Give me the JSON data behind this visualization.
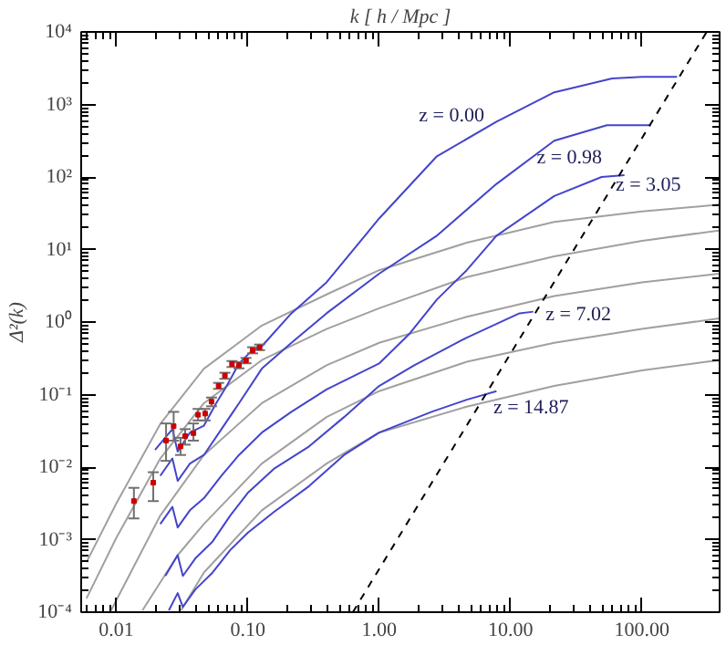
{
  "chart_data": {
    "type": "line",
    "xlabel": "k [ h / Mpc ]",
    "ylabel": "Δ²(k)",
    "log": "xy",
    "grid": false,
    "xlim": [
      0.0054,
      390
    ],
    "ylim": [
      0.0001,
      10000
    ],
    "xticks": [
      {
        "value": 0.01,
        "label": "0.01"
      },
      {
        "value": 0.1,
        "label": "0.10"
      },
      {
        "value": 1,
        "label": "1.00"
      },
      {
        "value": 10,
        "label": "10.00"
      },
      {
        "value": 100,
        "label": "100.00"
      }
    ],
    "yticks": [
      {
        "value": 0.0001,
        "label": "10⁻⁴"
      },
      {
        "value": 0.001,
        "label": "10⁻³"
      },
      {
        "value": 0.01,
        "label": "10⁻²"
      },
      {
        "value": 0.1,
        "label": "10⁻¹"
      },
      {
        "value": 1,
        "label": "10⁰"
      },
      {
        "value": 10,
        "label": "10¹"
      },
      {
        "value": 100,
        "label": "10²"
      },
      {
        "value": 1000,
        "label": "10³"
      },
      {
        "value": 10000,
        "label": "10⁴"
      }
    ],
    "series": [
      {
        "color": "#a0a0a0",
        "x": [
          0.00593,
          0.01,
          0.0216,
          0.0464,
          0.128,
          0.398,
          1,
          4.64,
          21.5,
          100,
          385
        ],
        "values": [
          0.00049,
          0.00316,
          0.0394,
          0.2275,
          0.896,
          2.4,
          5.18,
          12.4,
          24.0,
          33.4,
          41.6
        ]
      },
      {
        "color": "#a0a0a0",
        "x": [
          0.00593,
          0.01,
          0.0216,
          0.0464,
          0.128,
          0.398,
          1,
          4.64,
          21.5,
          100,
          385
        ],
        "values": [
          0.000155,
          0.00106,
          0.01315,
          0.076,
          0.299,
          0.803,
          1.55,
          4.16,
          8.03,
          13.2,
          18.3
        ]
      },
      {
        "color": "#a0a0a0",
        "x": [
          0.00912,
          0.0216,
          0.0464,
          0.128,
          0.398,
          1,
          4.64,
          21.5,
          100,
          385
        ],
        "values": [
          0.000106,
          0.00215,
          0.0147,
          0.076,
          0.254,
          0.518,
          1.18,
          2.28,
          3.53,
          4.64
        ]
      },
      {
        "color": "#a0a0a0",
        "x": [
          0.0158,
          0.0293,
          0.0464,
          0.128,
          0.398,
          1,
          4.64,
          21.5,
          100,
          385
        ],
        "values": [
          0.000106,
          0.000611,
          0.00164,
          0.01117,
          0.049,
          0.1117,
          0.283,
          0.518,
          0.803,
          1.12
        ]
      },
      {
        "color": "#a0a0a0",
        "x": [
          0.0311,
          0.0464,
          0.128,
          0.398,
          1,
          4.64,
          21.5,
          100,
          385
        ],
        "values": [
          0.000106,
          0.000353,
          0.00254,
          0.01117,
          0.0299,
          0.0681,
          0.1315,
          0.215,
          0.299
        ]
      },
      {
        "color": "#4444cc",
        "x": [
          0.0197,
          0.0267,
          0.0293,
          0.0363,
          0.0464,
          0.0575,
          0.0692,
          0.0858,
          0.106,
          0.128,
          0.215,
          0.398,
          1,
          2.75,
          7.82,
          21.5,
          59.3,
          100,
          185
        ],
        "values": [
          0.0173,
          0.0334,
          0.0164,
          0.0299,
          0.0373,
          0.076,
          0.1315,
          0.268,
          0.394,
          0.464,
          1.32,
          3.53,
          26.8,
          193,
          578,
          1470,
          2280,
          2400,
          2400
        ]
      },
      {
        "color": "#4444cc",
        "x": [
          0.0216,
          0.0267,
          0.0293,
          0.0363,
          0.0464,
          0.0631,
          0.0858,
          0.128,
          0.215,
          0.398,
          1,
          2.75,
          7.82,
          21.5,
          54.1,
          117
        ],
        "values": [
          0.0076,
          0.01315,
          0.00645,
          0.01117,
          0.0147,
          0.0334,
          0.076,
          0.2275,
          0.518,
          1.32,
          4.64,
          15.5,
          80.3,
          316,
          518,
          518
        ]
      },
      {
        "color": "#4444cc",
        "x": [
          0.0216,
          0.0267,
          0.0293,
          0.0363,
          0.0464,
          0.0631,
          0.0858,
          0.128,
          0.215,
          0.398,
          1,
          1.69,
          2.75,
          4.64,
          7.82,
          21.5,
          49.3,
          73.6
        ],
        "values": [
          0.00164,
          0.00283,
          0.00147,
          0.00254,
          0.00373,
          0.0076,
          0.0147,
          0.0299,
          0.0578,
          0.118,
          0.268,
          0.681,
          2.04,
          5.18,
          15.5,
          54.7,
          100,
          106
        ]
      },
      {
        "color": "#4444cc",
        "x": [
          0.0236,
          0.0293,
          0.0321,
          0.0398,
          0.0541,
          0.0736,
          0.1,
          0.158,
          0.293,
          0.541,
          1,
          1.85,
          4.64,
          11.7,
          14.9
        ],
        "values": [
          0.000316,
          0.000611,
          0.000316,
          0.000547,
          0.000946,
          0.00215,
          0.0044,
          0.00946,
          0.0193,
          0.049,
          0.1315,
          0.254,
          0.61,
          1.32,
          1.39
        ]
      },
      {
        "color": "#4444cc",
        "x": [
          0.0251,
          0.0293,
          0.0321,
          0.0398,
          0.0541,
          0.0736,
          0.1,
          0.158,
          0.293,
          0.541,
          1,
          2.51,
          4.64,
          7.82
        ],
        "values": [
          0.000106,
          0.000183,
          0.000118,
          0.000204,
          0.000353,
          0.00072,
          0.00124,
          0.0024,
          0.00547,
          0.0147,
          0.0299,
          0.0578,
          0.0849,
          0.1117
        ]
      },
      {
        "color": "#000000",
        "line_style": "dashed",
        "x": [
          0.631,
          311
        ],
        "values": [
          0.0001,
          10000
        ]
      },
      {
        "type": "scatter",
        "marker": "square",
        "color": "#cc0000",
        "x": [
          0.0136,
          0.0191,
          0.0239,
          0.0273,
          0.0308,
          0.0334,
          0.0386,
          0.0419,
          0.0474,
          0.053,
          0.06,
          0.067,
          0.0759,
          0.0858,
          0.097,
          0.109,
          0.123
        ],
        "values": [
          0.0034,
          0.0061,
          0.0232,
          0.0367,
          0.0193,
          0.0268,
          0.0294,
          0.0527,
          0.0547,
          0.08,
          0.1315,
          0.183,
          0.264,
          0.254,
          0.294,
          0.408,
          0.447
        ],
        "errors": [
          [
            0.00196,
            0.00518
          ],
          [
            0.0034,
            0.0085
          ],
          [
            0.0122,
            0.04
          ],
          [
            0.0232,
            0.0578
          ],
          [
            0.0147,
            0.0254
          ],
          [
            0.0204,
            0.0334
          ],
          [
            0.0232,
            0.04
          ],
          [
            0.044,
            0.0634
          ],
          [
            0.044,
            0.0634
          ],
          [
            0.069,
            0.091
          ],
          [
            0.12,
            0.145
          ],
          [
            0.165,
            0.2
          ],
          [
            0.24,
            0.29
          ],
          [
            0.23,
            0.28
          ],
          [
            0.27,
            0.32
          ],
          [
            0.37,
            0.45
          ],
          [
            0.41,
            0.49
          ]
        ]
      }
    ],
    "annotations": [
      {
        "text": "z =  0.00",
        "x": 7.82,
        "y": 578
      },
      {
        "text": "z =  0.98",
        "x": 15.8,
        "y": 182
      },
      {
        "text": "z =  3.05",
        "x": 63,
        "y": 76
      },
      {
        "text": "z =  7.02",
        "x": 18.5,
        "y": 1.25
      },
      {
        "text": "z = 14.87",
        "x": 7.4,
        "y": 0.065
      }
    ]
  }
}
